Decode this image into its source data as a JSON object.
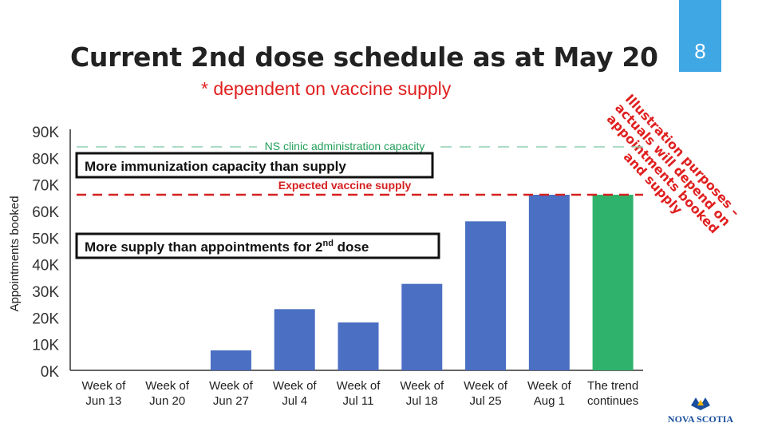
{
  "slide": {
    "number": "8",
    "title": "Current 2nd dose schedule as at May 20",
    "subtitle": "* dependent on vaccine supply",
    "illustration_note": "Illustration purposes – actuals will depend on appointments booked and supply",
    "logo_text": "NOVA SCOTIA"
  },
  "colors": {
    "bar": "#4a6fc3",
    "trend_bar": "#2fb36c",
    "capacity_line": "#8fd0b0",
    "supply_line": "#d62020",
    "capacity_text": "#22a05a",
    "supply_text": "#d62020",
    "accent": "#3fa7e4"
  },
  "chart_data": {
    "type": "bar",
    "categories": [
      [
        "Week of",
        "Jun 13"
      ],
      [
        "Week of",
        "Jun 20"
      ],
      [
        "Week of",
        "Jun 27"
      ],
      [
        "Week of",
        "Jul 4"
      ],
      [
        "Week of",
        "Jul 11"
      ],
      [
        "Week of",
        "Jul 18"
      ],
      [
        "Week of",
        "Jul 25"
      ],
      [
        "Week of",
        "Aug 1"
      ],
      [
        "The trend",
        "continues"
      ]
    ],
    "values": [
      0,
      0,
      7500,
      23000,
      18000,
      32500,
      56000,
      66000,
      66000
    ],
    "highlight_index": 8,
    "ylabel": "Appointments booked",
    "ylim": [
      0,
      90000
    ],
    "yticks": [
      0,
      10000,
      20000,
      30000,
      40000,
      50000,
      60000,
      70000,
      80000,
      90000
    ],
    "ytick_labels": [
      "0K",
      "10K",
      "20K",
      "30K",
      "40K",
      "50K",
      "60K",
      "70K",
      "80K",
      "90K"
    ],
    "reference_lines": [
      {
        "name": "NS clinic administration capacity",
        "value": 84000,
        "style": "dashed"
      },
      {
        "name": "Expected vaccine supply",
        "value": 66000,
        "style": "dashed"
      }
    ],
    "annotations": [
      {
        "text": "More immunization capacity than supply"
      },
      {
        "text_main": "More supply than appointments for 2",
        "text_sup": "nd",
        "text_tail": " dose"
      }
    ],
    "grid": false
  }
}
